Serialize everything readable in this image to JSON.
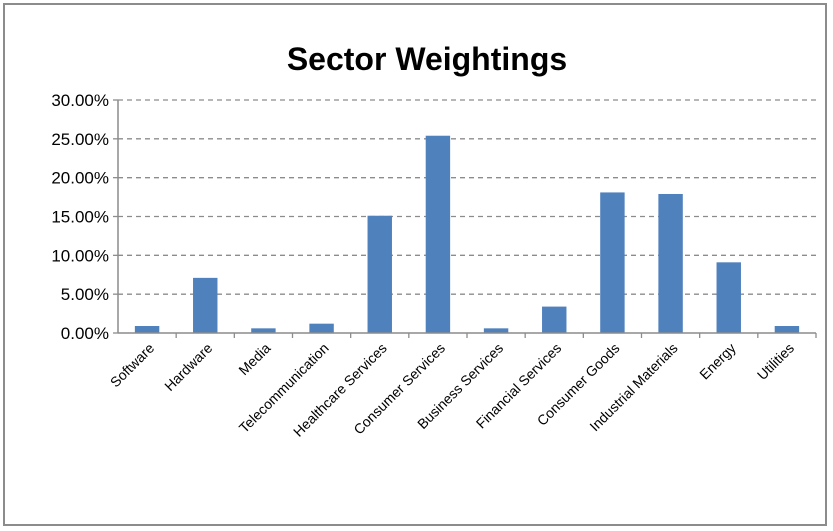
{
  "chart_data": {
    "type": "bar",
    "title": "Sector Weightings",
    "xlabel": "",
    "ylabel": "",
    "categories": [
      "Software",
      "Hardware",
      "Media",
      "Telecommunication",
      "Healthcare Services",
      "Consumer Services",
      "Business Services",
      "Financial Services",
      "Consumer Goods",
      "Industrial Materials",
      "Energy",
      "Utilities"
    ],
    "values": [
      0.9,
      7.1,
      0.6,
      1.2,
      15.1,
      25.4,
      0.6,
      3.4,
      18.1,
      17.9,
      9.1,
      0.9
    ],
    "ylim": [
      0,
      30
    ],
    "y_ticks": [
      "0.00%",
      "5.00%",
      "10.00%",
      "15.00%",
      "20.00%",
      "25.00%",
      "30.00%"
    ],
    "grid": true,
    "legend": "none",
    "bar_color": "#4f81bd",
    "grid_color": "#8c8c8c",
    "border_color": "#8c8c8c"
  }
}
